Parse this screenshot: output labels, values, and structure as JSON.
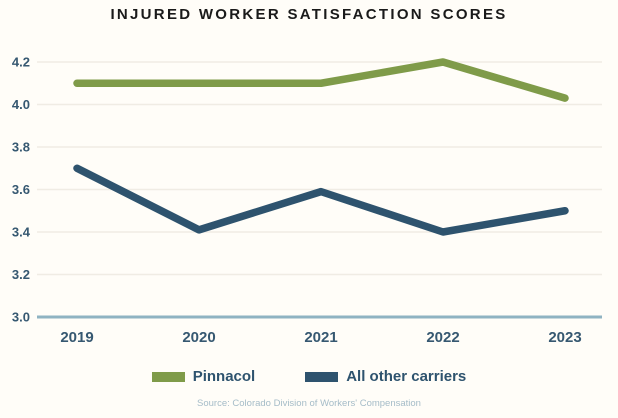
{
  "page": {
    "title": "INJURED WORKER SATISFACTION SCORES",
    "source": "Source: Colorado Division of Workers' Compensation"
  },
  "chart_data": {
    "type": "line",
    "title": "INJURED WORKER SATISFACTION SCORES",
    "x": [
      "2019",
      "2020",
      "2021",
      "2022",
      "2023"
    ],
    "series": [
      {
        "name": "Pinnacol",
        "color": "#7f9b49",
        "values": [
          4.1,
          4.1,
          4.1,
          4.2,
          4.03
        ]
      },
      {
        "name": "All other carriers",
        "color": "#2e536e",
        "values": [
          3.7,
          3.41,
          3.59,
          3.4,
          3.5
        ]
      }
    ],
    "ylim": [
      3.0,
      4.2
    ],
    "yticks": [
      3.0,
      3.2,
      3.4,
      3.6,
      3.8,
      4.0,
      4.2
    ],
    "ytick_labels": [
      "3.0",
      "3.2",
      "3.4",
      "3.6",
      "3.8",
      "4.0",
      "4.2"
    ],
    "xlabel": "",
    "ylabel": "",
    "grid": true,
    "legend_position": "bottom"
  },
  "legend": {
    "items": [
      {
        "label": "Pinnacol",
        "color": "#7f9b49"
      },
      {
        "label": "All other carriers",
        "color": "#2e536e"
      }
    ]
  },
  "colors": {
    "background": "#fffdf8",
    "gridline": "#f0ece4",
    "baseline": "#8fb3c2",
    "tick_text": "#365871",
    "title_text": "#1a1a1a",
    "legend_text": "#2e536e",
    "source_text": "#a5bcc8"
  }
}
